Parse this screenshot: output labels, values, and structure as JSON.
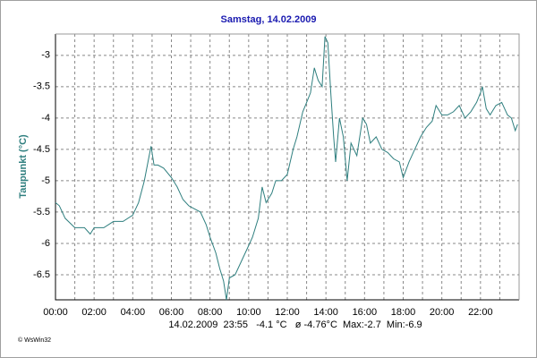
{
  "chart_data": {
    "type": "line",
    "title": "Samstag, 14.02.2009",
    "y_label": "Taupunkt  (°C)",
    "info": "14.02.2009  23:55   -4.1 °C   ø -4.76°C  Max:-2.7  Min:-6.9",
    "credit": "© WsWin32",
    "x": [
      0,
      0.2,
      0.5,
      1.0,
      1.5,
      1.8,
      2.0,
      2.5,
      3.0,
      3.5,
      4.0,
      4.3,
      4.6,
      4.85,
      4.95,
      5.1,
      5.3,
      5.6,
      6.0,
      6.3,
      6.6,
      6.9,
      7.2,
      7.5,
      7.8,
      8.0,
      8.3,
      8.5,
      8.7,
      8.85,
      9.0,
      9.3,
      9.6,
      9.9,
      10.2,
      10.5,
      10.7,
      10.9,
      11.2,
      11.4,
      11.7,
      12.0,
      12.3,
      12.5,
      12.8,
      13.0,
      13.2,
      13.4,
      13.6,
      13.8,
      13.95,
      14.1,
      14.25,
      14.4,
      14.5,
      14.7,
      14.9,
      15.1,
      15.3,
      15.6,
      15.9,
      16.1,
      16.3,
      16.6,
      16.9,
      17.2,
      17.5,
      17.8,
      18.0,
      18.3,
      18.6,
      18.9,
      19.2,
      19.5,
      19.7,
      20.0,
      20.3,
      20.6,
      20.9,
      21.2,
      21.5,
      21.8,
      22.0,
      22.1,
      22.3,
      22.5,
      22.8,
      23.1,
      23.4,
      23.6,
      23.8,
      23.92
    ],
    "series": [
      {
        "name": "Taupunkt",
        "color": "#2f7f7f",
        "values": [
          -5.35,
          -5.4,
          -5.6,
          -5.75,
          -5.75,
          -5.85,
          -5.75,
          -5.75,
          -5.65,
          -5.65,
          -5.55,
          -5.35,
          -5.0,
          -4.6,
          -4.45,
          -4.75,
          -4.75,
          -4.8,
          -4.95,
          -5.1,
          -5.3,
          -5.4,
          -5.45,
          -5.5,
          -5.7,
          -5.9,
          -6.15,
          -6.4,
          -6.6,
          -6.9,
          -6.55,
          -6.5,
          -6.3,
          -6.1,
          -5.9,
          -5.6,
          -5.1,
          -5.35,
          -5.2,
          -5.0,
          -5.0,
          -4.9,
          -4.5,
          -4.3,
          -3.9,
          -3.75,
          -3.6,
          -3.2,
          -3.4,
          -3.5,
          -2.7,
          -2.8,
          -3.6,
          -4.3,
          -4.7,
          -4.0,
          -4.3,
          -5.0,
          -4.4,
          -4.6,
          -4.0,
          -4.1,
          -4.4,
          -4.3,
          -4.5,
          -4.55,
          -4.65,
          -4.7,
          -4.95,
          -4.7,
          -4.5,
          -4.3,
          -4.15,
          -4.05,
          -3.8,
          -3.95,
          -3.95,
          -3.9,
          -3.8,
          -4.0,
          -3.9,
          -3.75,
          -3.6,
          -3.5,
          -3.85,
          -3.95,
          -3.8,
          -3.75,
          -3.95,
          -4.0,
          -4.2,
          -4.1
        ]
      }
    ],
    "xlim": [
      0,
      24
    ],
    "xticks": [
      {
        "value": 0,
        "label": "00:00"
      },
      {
        "value": 2,
        "label": "02:00"
      },
      {
        "value": 4,
        "label": "04:00"
      },
      {
        "value": 6,
        "label": "06:00"
      },
      {
        "value": 8,
        "label": "08:00"
      },
      {
        "value": 10,
        "label": "10:00"
      },
      {
        "value": 12,
        "label": "12:00"
      },
      {
        "value": 14,
        "label": "14:00"
      },
      {
        "value": 16,
        "label": "16:00"
      },
      {
        "value": 18,
        "label": "18:00"
      },
      {
        "value": 20,
        "label": "20:00"
      },
      {
        "value": 22,
        "label": "22:00"
      }
    ],
    "xminor": [
      1,
      3,
      5,
      7,
      9,
      11,
      13,
      15,
      17,
      19,
      21,
      23
    ],
    "ylim": [
      -6.9,
      -2.66
    ],
    "yticks": [
      -3,
      -3.5,
      -4,
      -4.5,
      -5,
      -5.5,
      -6,
      -6.5
    ],
    "grid": true
  }
}
